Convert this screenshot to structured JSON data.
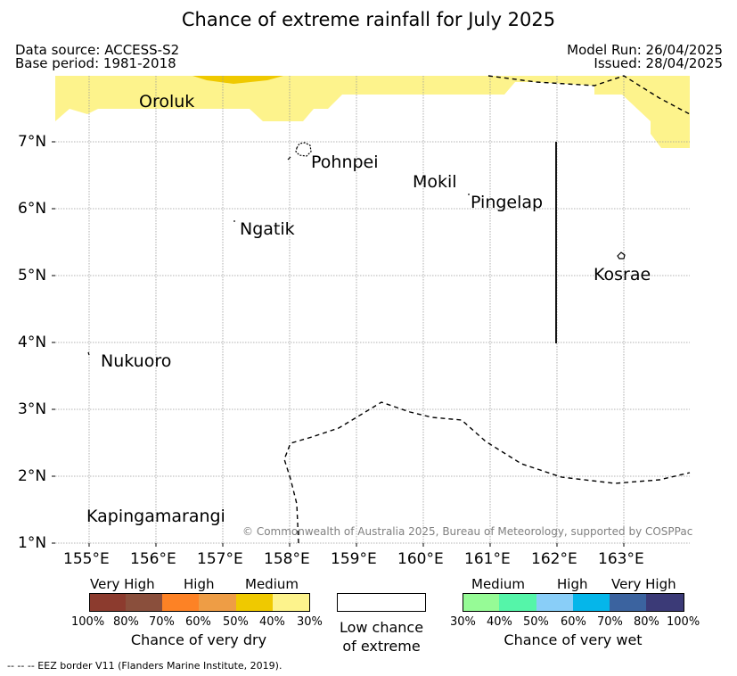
{
  "title": "Chance of extreme rainfall for July 2025",
  "header": {
    "data_source": "Data source: ACCESS-S2",
    "base_period": "Base period: 1981-2018",
    "model_run": "Model Run: 26/04/2025",
    "issued": "Issued: 28/04/2025"
  },
  "map": {
    "lon_ticks": [
      "155°E",
      "156°E",
      "157°E",
      "158°E",
      "159°E",
      "160°E",
      "161°E",
      "162°E",
      "163°E"
    ],
    "lat_ticks": [
      "7°N",
      "6°N",
      "5°N",
      "4°N",
      "3°N",
      "2°N",
      "1°N"
    ],
    "grid": true,
    "places": {
      "oroluk": "Oroluk",
      "pohnpei": "Pohnpei",
      "mokil": "Mokil",
      "pingelap": "Pingelap",
      "ngatik": "Ngatik",
      "kosrae": "Kosrae",
      "nukuoro": "Nukuoro",
      "kapingamarangi": "Kapingamarangi"
    },
    "copyright": "© Commonwealth of Australia 2025, Bureau of Meteorology, supported by COSPPac",
    "colors": {
      "medium_dry": "#fdf38c",
      "high_dry": "#efc900",
      "border": "#000000"
    }
  },
  "legend": {
    "dry": {
      "headers": [
        "Very High",
        "High",
        "Medium"
      ],
      "ticks": [
        "100%",
        "80%",
        "70%",
        "60%",
        "50%",
        "40%",
        "30%"
      ],
      "caption": "Chance of very dry",
      "colors": [
        "#8c3b2e",
        "#8a4f3c",
        "#fd8225",
        "#ee9d45",
        "#efc900",
        "#fdf38c"
      ]
    },
    "low": {
      "caption_line1": "Low chance",
      "caption_line2": "of extreme"
    },
    "wet": {
      "headers": [
        "Medium",
        "High",
        "Very High"
      ],
      "ticks": [
        "30%",
        "40%",
        "50%",
        "60%",
        "70%",
        "80%",
        "100%"
      ],
      "caption": "Chance of very wet",
      "colors": [
        "#96fb96",
        "#55f5a9",
        "#89cef8",
        "#05b6ea",
        "#3b639f",
        "#3b3a77"
      ]
    }
  },
  "footnote": "-- -- -- EEZ border V11 (Flanders Marine Institute, 2019)."
}
